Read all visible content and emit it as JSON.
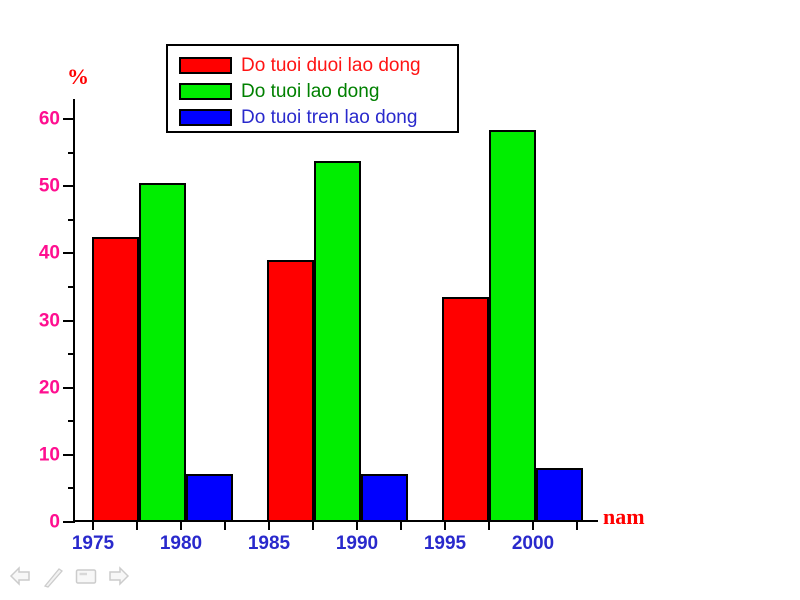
{
  "chart_data": {
    "type": "bar",
    "title": "",
    "ylabel": "%",
    "xlabel": "nam",
    "categories": [
      "1975",
      "1985",
      "1995"
    ],
    "series": [
      {
        "name": "Do tuoi duoi lao dong",
        "color": "#ff0000",
        "label_color": "#ff1414",
        "values": [
          42.5,
          39.0,
          33.5
        ]
      },
      {
        "name": "Do tuoi lao dong",
        "color": "#00ee00",
        "label_color": "#008000",
        "values": [
          50.4,
          53.8,
          58.4
        ]
      },
      {
        "name": "Do tuoi tren lao dong",
        "color": "#0000ff",
        "label_color": "#2929cc",
        "values": [
          7.1,
          7.2,
          8.1
        ]
      }
    ],
    "x_ticklabels": [
      "1975",
      "1980",
      "1985",
      "1990",
      "1995",
      "2000"
    ],
    "y_ticklabels": [
      "0",
      "10",
      "20",
      "30",
      "40",
      "50",
      "60"
    ],
    "ylim": [
      0,
      63
    ],
    "x_major_step": 5,
    "x_minor_step": 2.5,
    "y_major_step": 10,
    "y_minor_step": 5,
    "grid": false,
    "legend_position": "top-center",
    "axis_label_color": "#ff0000",
    "x_tick_label_color": "#2929cc",
    "y_tick_label_color": "#ff0f90",
    "axis_color": "#000000"
  },
  "slideshow_controls": {
    "color": "#cccccc",
    "items": [
      {
        "icon": "previous-slide-arrow"
      },
      {
        "icon": "pen"
      },
      {
        "icon": "slide-menu"
      },
      {
        "icon": "next-slide-arrow"
      }
    ]
  }
}
